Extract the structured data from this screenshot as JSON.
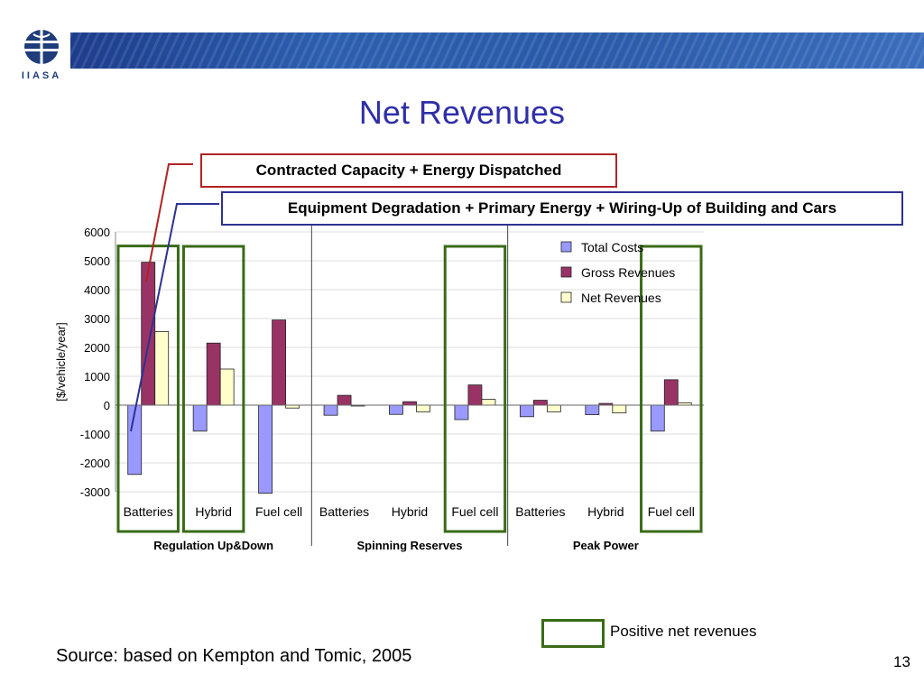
{
  "logo": {
    "text": "IIASA"
  },
  "slide": {
    "title": "Net Revenues",
    "callout_red": "Contracted Capacity + Energy Dispatched",
    "callout_blue": "Equipment Degradation + Primary Energy + Wiring-Up of Building and Cars",
    "legend_note": "Positive net revenues",
    "source": "Source: based on Kempton and Tomic, 2005",
    "page_number": "13"
  },
  "colors": {
    "total_costs": "#9999ff",
    "gross_revenues": "#993366",
    "net_revenues": "#ffffcc",
    "highlight_green": "#3a6b17",
    "title_blue": "#2f2fa8",
    "callout_red": "#b22222",
    "callout_blue": "#2e3192"
  },
  "chart_data": {
    "type": "bar",
    "ylabel": "[$/vehicle/year]",
    "ylim": [
      -3000,
      6000
    ],
    "yticks": [
      6000,
      5000,
      4000,
      3000,
      2000,
      1000,
      0,
      -1000,
      -2000,
      -3000
    ],
    "categories": [
      "Batteries",
      "Hybrid",
      "Fuel cell",
      "Batteries",
      "Hybrid",
      "Fuel cell",
      "Batteries",
      "Hybrid",
      "Fuel cell"
    ],
    "groups": [
      {
        "label": "Regulation Up&Down",
        "categories": [
          "Batteries",
          "Hybrid",
          "Fuel cell"
        ]
      },
      {
        "label": "Spinning Reserves",
        "categories": [
          "Batteries",
          "Hybrid",
          "Fuel cell"
        ]
      },
      {
        "label": "Peak Power",
        "categories": [
          "Batteries",
          "Hybrid",
          "Fuel cell"
        ]
      }
    ],
    "series": [
      {
        "name": "Total Costs",
        "values": [
          -2400,
          -900,
          -3050,
          -350,
          -320,
          -500,
          -400,
          -330,
          -900
        ]
      },
      {
        "name": "Gross Revenues",
        "values": [
          4950,
          2150,
          2950,
          340,
          120,
          700,
          170,
          60,
          880
        ]
      },
      {
        "name": "Net Revenues",
        "values": [
          2550,
          1250,
          -100,
          -30,
          -230,
          200,
          -230,
          -270,
          80
        ]
      }
    ],
    "highlighted_categories": [
      0,
      1,
      5,
      8
    ],
    "legend_position": "top-right"
  }
}
